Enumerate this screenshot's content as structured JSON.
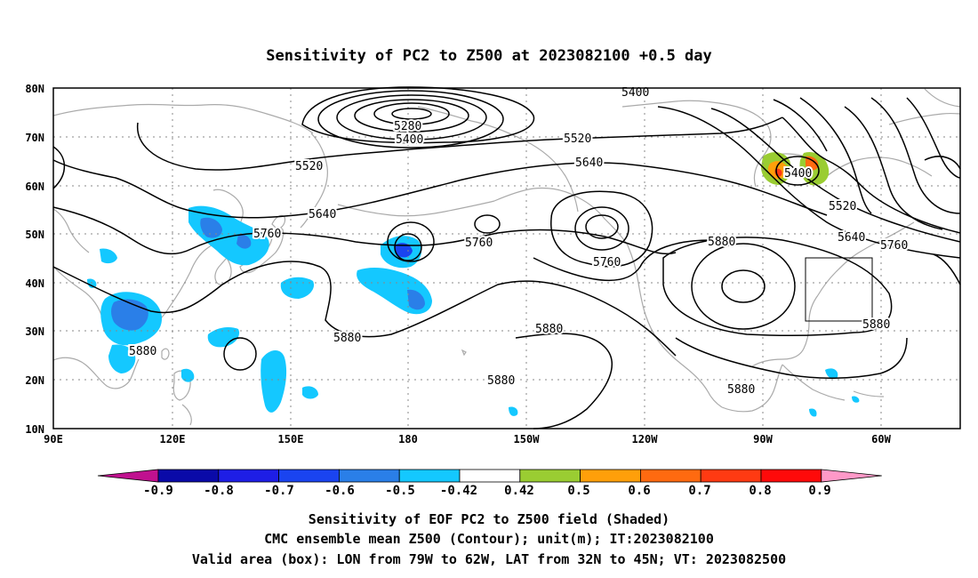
{
  "title": "Sensitivity of PC2 to Z500 at 2023082100 +0.5 day",
  "lat_labels": [
    "80N",
    "70N",
    "60N",
    "50N",
    "40N",
    "30N",
    "20N",
    "10N"
  ],
  "lon_labels": [
    "90E",
    "120E",
    "150E",
    "180",
    "150W",
    "120W",
    "90W",
    "60W"
  ],
  "contour_labels": [
    "5400",
    "5280",
    "5400",
    "5520",
    "5520",
    "5640",
    "5640",
    "5760",
    "5760",
    "5760",
    "5880",
    "5880",
    "5400",
    "5520",
    "5640",
    "5760",
    "5880",
    "5880",
    "5880",
    "5880",
    "5880"
  ],
  "colorbar": {
    "labels": [
      "-0.9",
      "-0.8",
      "-0.7",
      "-0.6",
      "-0.5",
      "-0.42",
      "0.42",
      "0.5",
      "0.6",
      "0.7",
      "0.8",
      "0.9"
    ],
    "colors": [
      "#c0118f",
      "#0a0aa8",
      "#1e1ee6",
      "#1a44f0",
      "#2a7fe8",
      "#14c8ff",
      "#ffffff",
      "#9acd32",
      "#ff9f0a",
      "#ff6a10",
      "#ff3a12",
      "#ff0a0a",
      "#ff99c8"
    ]
  },
  "captions": [
    "Sensitivity of EOF PC2 to Z500 field (Shaded)",
    "CMC ensemble mean Z500 (Contour); unit(m); IT:2023082100",
    "Valid area (box): LON from 79W to 62W, LAT from 32N to 45N; VT: 2023082500"
  ]
}
